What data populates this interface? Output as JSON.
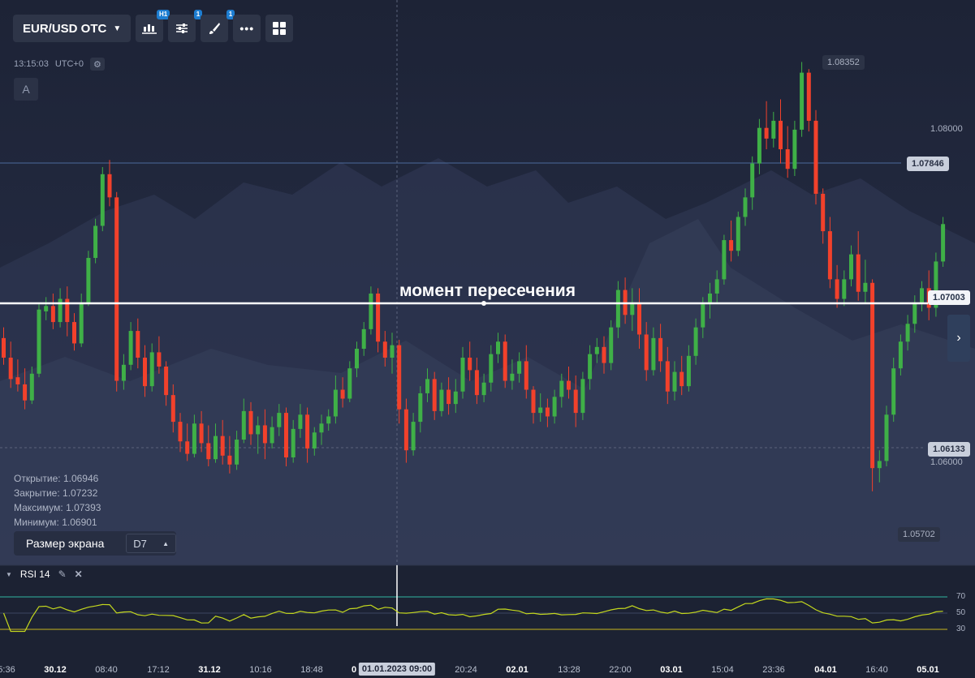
{
  "toolbar": {
    "pair": "EUR/USD OTC",
    "timeframe_badge": "H1",
    "indicators_badge": "1",
    "drawings_badge": "1"
  },
  "clock": {
    "time": "13:15:03",
    "timezone": "UTC+0"
  },
  "a_button": "A",
  "ohlc": {
    "open_label": "Открытие:",
    "open": "1.06946",
    "close_label": "Закрытие:",
    "close": "1.07232",
    "high_label": "Максимум:",
    "high": "1.07393",
    "low_label": "Минимум:",
    "low": "1.06901"
  },
  "screen_size": {
    "label": "Размер экрана",
    "value": "D7"
  },
  "annotation": "момент пересечения",
  "price_scale": {
    "max": "1.08352",
    "level1": "1.08000",
    "line_level": "1.07846",
    "current": "1.07003",
    "dashed_level": "1.06133",
    "level2": "1.06000",
    "min": "1.05702"
  },
  "rsi": {
    "title": "RSI 14",
    "levels": [
      "70",
      "50",
      "30"
    ]
  },
  "x_axis": [
    "5:36",
    "30.12",
    "08:40",
    "17:12",
    "31.12",
    "10:16",
    "18:48",
    "0",
    "01.01.2023 09:00",
    "20:24",
    "02.01",
    "13:28",
    "22:00",
    "03.01",
    "15:04",
    "23:36",
    "04.01",
    "16:40",
    "05.01"
  ],
  "colors": {
    "bull": "#3fb047",
    "bear": "#f2412b",
    "rsi_line": "#c4d81e",
    "rsi_upper": "#2fb7a0",
    "rsi_lower": "#c7b61e"
  },
  "chart_data": {
    "type": "candlestick",
    "ylim": [
      1.05702,
      1.08352
    ],
    "candles": [
      [
        1.068,
        1.0686,
        1.0669,
        1.0665
      ],
      [
        1.0669,
        1.0678,
        1.0657,
        1.0652
      ],
      [
        1.0658,
        1.0668,
        1.0654,
        1.065
      ],
      [
        1.0654,
        1.0663,
        1.0645,
        1.064
      ],
      [
        1.0645,
        1.0664,
        1.066,
        1.0643
      ],
      [
        1.066,
        1.0699,
        1.0696,
        1.0658
      ],
      [
        1.0695,
        1.0703,
        1.0698,
        1.069
      ],
      [
        1.0698,
        1.0705,
        1.0689,
        1.0685
      ],
      [
        1.0689,
        1.0708,
        1.0702,
        1.0686
      ],
      [
        1.0702,
        1.0709,
        1.0689,
        1.0681
      ],
      [
        1.0689,
        1.0694,
        1.0677,
        1.0673
      ],
      [
        1.0677,
        1.0705,
        1.07,
        1.0675
      ],
      [
        1.07,
        1.0729,
        1.0725,
        1.0698
      ],
      [
        1.0725,
        1.0747,
        1.0743,
        1.0722
      ],
      [
        1.0743,
        1.0776,
        1.0772,
        1.074
      ],
      [
        1.0772,
        1.078,
        1.0759,
        1.0754
      ],
      [
        1.0759,
        1.0762,
        1.0656,
        1.065
      ],
      [
        1.0656,
        1.0671,
        1.0665,
        1.0651
      ],
      [
        1.0665,
        1.0689,
        1.0684,
        1.0662
      ],
      [
        1.0684,
        1.0691,
        1.0669,
        1.0663
      ],
      [
        1.0669,
        1.0676,
        1.0653,
        1.0647
      ],
      [
        1.0653,
        1.0677,
        1.0672,
        1.065
      ],
      [
        1.0672,
        1.0681,
        1.0664,
        1.066
      ],
      [
        1.0664,
        1.0667,
        1.0648,
        1.0642
      ],
      [
        1.0648,
        1.0654,
        1.0633,
        1.0627
      ],
      [
        1.0633,
        1.0638,
        1.0622,
        1.0616
      ],
      [
        1.0622,
        1.0632,
        1.0615,
        1.0611
      ],
      [
        1.0615,
        1.0637,
        1.0632,
        1.0613
      ],
      [
        1.0632,
        1.0639,
        1.0621,
        1.0616
      ],
      [
        1.0621,
        1.0631,
        1.0612,
        1.0608
      ],
      [
        1.0612,
        1.0632,
        1.0625,
        1.061
      ],
      [
        1.0625,
        1.0634,
        1.0614,
        1.0609
      ],
      [
        1.0614,
        1.0625,
        1.0609,
        1.0604
      ],
      [
        1.0609,
        1.0628,
        1.0623,
        1.0606
      ],
      [
        1.0623,
        1.0646,
        1.0639,
        1.0621
      ],
      [
        1.0639,
        1.0644,
        1.0626,
        1.062
      ],
      [
        1.0626,
        1.0636,
        1.0631,
        1.0615
      ],
      [
        1.0631,
        1.064,
        1.0621,
        1.0612
      ],
      [
        1.0621,
        1.0636,
        1.063,
        1.0618
      ],
      [
        1.063,
        1.0643,
        1.0638,
        1.0625
      ],
      [
        1.0638,
        1.0641,
        1.0613,
        1.0608
      ],
      [
        1.0613,
        1.0634,
        1.0629,
        1.061
      ],
      [
        1.0629,
        1.0643,
        1.0637,
        1.0624
      ],
      [
        1.0637,
        1.0641,
        1.0618,
        1.061
      ],
      [
        1.0618,
        1.063,
        1.0627,
        1.0614
      ],
      [
        1.0627,
        1.0637,
        1.0632,
        1.062
      ],
      [
        1.0632,
        1.064,
        1.0636,
        1.0628
      ],
      [
        1.0636,
        1.0659,
        1.0651,
        1.0632
      ],
      [
        1.0651,
        1.0658,
        1.0646,
        1.0641
      ],
      [
        1.0646,
        1.0667,
        1.0663,
        1.0644
      ],
      [
        1.0663,
        1.0678,
        1.0674,
        1.0658
      ],
      [
        1.0674,
        1.0689,
        1.0685,
        1.067
      ],
      [
        1.0685,
        1.0709,
        1.0705,
        1.0682
      ],
      [
        1.0705,
        1.0708,
        1.0678,
        1.0672
      ],
      [
        1.0678,
        1.0684,
        1.0669,
        1.0664
      ],
      [
        1.0669,
        1.0683,
        1.0676,
        1.066
      ],
      [
        1.0676,
        1.0679,
        1.064,
        1.0632
      ],
      [
        1.064,
        1.0646,
        1.0617,
        1.061
      ],
      [
        1.0617,
        1.0638,
        1.0633,
        1.0614
      ],
      [
        1.0633,
        1.0653,
        1.0649,
        1.0627
      ],
      [
        1.0649,
        1.0663,
        1.0657,
        1.0644
      ],
      [
        1.0657,
        1.0661,
        1.0639,
        1.0634
      ],
      [
        1.0639,
        1.0655,
        1.0651,
        1.0636
      ],
      [
        1.0651,
        1.0658,
        1.0643,
        1.0637
      ],
      [
        1.0643,
        1.0657,
        1.065,
        1.0638
      ],
      [
        1.065,
        1.0675,
        1.0669,
        1.0646
      ],
      [
        1.0669,
        1.0678,
        1.0662,
        1.0656
      ],
      [
        1.0662,
        1.0669,
        1.0648,
        1.0643
      ],
      [
        1.0648,
        1.066,
        1.0655,
        1.0644
      ],
      [
        1.0655,
        1.0676,
        1.0671,
        1.065
      ],
      [
        1.0671,
        1.0683,
        1.0678,
        1.0666
      ],
      [
        1.0678,
        1.0682,
        1.0656,
        1.0652
      ],
      [
        1.0656,
        1.0668,
        1.066,
        1.0651
      ],
      [
        1.066,
        1.0672,
        1.0667,
        1.0655
      ],
      [
        1.0667,
        1.0676,
        1.0651,
        1.0646
      ],
      [
        1.0651,
        1.0653,
        1.0638,
        1.0632
      ],
      [
        1.0638,
        1.0649,
        1.0641,
        1.0633
      ],
      [
        1.0641,
        1.0646,
        1.0636,
        1.063
      ],
      [
        1.0636,
        1.0651,
        1.0647,
        1.0632
      ],
      [
        1.0647,
        1.066,
        1.0656,
        1.0641
      ],
      [
        1.0656,
        1.0664,
        1.0651,
        1.0646
      ],
      [
        1.0651,
        1.0659,
        1.0638,
        1.063
      ],
      [
        1.0638,
        1.0661,
        1.0657,
        1.0634
      ],
      [
        1.0657,
        1.0676,
        1.0671,
        1.0651
      ],
      [
        1.0671,
        1.068,
        1.0675,
        1.0666
      ],
      [
        1.0675,
        1.0681,
        1.0666,
        1.066
      ],
      [
        1.0666,
        1.069,
        1.0686,
        1.0662
      ],
      [
        1.0686,
        1.0712,
        1.0707,
        1.068
      ],
      [
        1.0707,
        1.0714,
        1.0693,
        1.0688
      ],
      [
        1.0693,
        1.0708,
        1.07,
        1.0684
      ],
      [
        1.07,
        1.0708,
        1.0682,
        1.0674
      ],
      [
        1.0682,
        1.0689,
        1.0662,
        1.0656
      ],
      [
        1.0662,
        1.0686,
        1.068,
        1.0659
      ],
      [
        1.068,
        1.0688,
        1.0667,
        1.0661
      ],
      [
        1.0667,
        1.0675,
        1.065,
        1.0643
      ],
      [
        1.065,
        1.0667,
        1.0661,
        1.0645
      ],
      [
        1.0661,
        1.067,
        1.0653,
        1.0648
      ],
      [
        1.0653,
        1.0676,
        1.067,
        1.065
      ],
      [
        1.067,
        1.0691,
        1.0686,
        1.0665
      ],
      [
        1.0686,
        1.0703,
        1.0699,
        1.068
      ],
      [
        1.0699,
        1.0711,
        1.0705,
        1.0691
      ],
      [
        1.0705,
        1.0718,
        1.0713,
        1.0699
      ],
      [
        1.0713,
        1.0738,
        1.0735,
        1.071
      ],
      [
        1.0735,
        1.0746,
        1.0729,
        1.0723
      ],
      [
        1.0729,
        1.0751,
        1.0748,
        1.0726
      ],
      [
        1.0748,
        1.0764,
        1.0759,
        1.0743
      ],
      [
        1.0759,
        1.0782,
        1.0778,
        1.0752
      ],
      [
        1.0778,
        1.0803,
        1.0798,
        1.0772
      ],
      [
        1.0798,
        1.0813,
        1.0792,
        1.0786
      ],
      [
        1.0792,
        1.0807,
        1.0802,
        1.0787
      ],
      [
        1.0802,
        1.0814,
        1.0786,
        1.0778
      ],
      [
        1.0786,
        1.0799,
        1.0775,
        1.077
      ],
      [
        1.0775,
        1.0802,
        1.0797,
        1.0771
      ],
      [
        1.0797,
        1.0835,
        1.0829,
        1.0793
      ],
      [
        1.0829,
        1.0831,
        1.0802,
        1.0796
      ],
      [
        1.0802,
        1.0808,
        1.0761,
        1.0755
      ],
      [
        1.0761,
        1.0764,
        1.074,
        1.0733
      ],
      [
        1.074,
        1.0748,
        1.0713,
        1.0708
      ],
      [
        1.0713,
        1.0721,
        1.0702,
        1.0697
      ],
      [
        1.0702,
        1.0718,
        1.0713,
        1.0698
      ],
      [
        1.0713,
        1.0732,
        1.0727,
        1.0709
      ],
      [
        1.0727,
        1.074,
        1.0706,
        1.0701
      ],
      [
        1.0706,
        1.0724,
        1.0711,
        1.07
      ],
      [
        1.0711,
        1.0713,
        1.0607,
        1.0594
      ],
      [
        1.0607,
        1.0617,
        1.0611,
        1.0599
      ],
      [
        1.0611,
        1.0642,
        1.0637,
        1.0608
      ],
      [
        1.0637,
        1.0669,
        1.0663,
        1.0633
      ],
      [
        1.0663,
        1.0682,
        1.0678,
        1.0659
      ],
      [
        1.0678,
        1.0693,
        1.0688,
        1.0673
      ],
      [
        1.0688,
        1.0704,
        1.07,
        1.0683
      ],
      [
        1.07,
        1.0712,
        1.0708,
        1.0695
      ],
      [
        1.0708,
        1.0718,
        1.0697,
        1.069
      ],
      [
        1.0697,
        1.0728,
        1.0723,
        1.0692
      ],
      [
        1.0723,
        1.0748,
        1.0744,
        1.072
      ]
    ]
  }
}
